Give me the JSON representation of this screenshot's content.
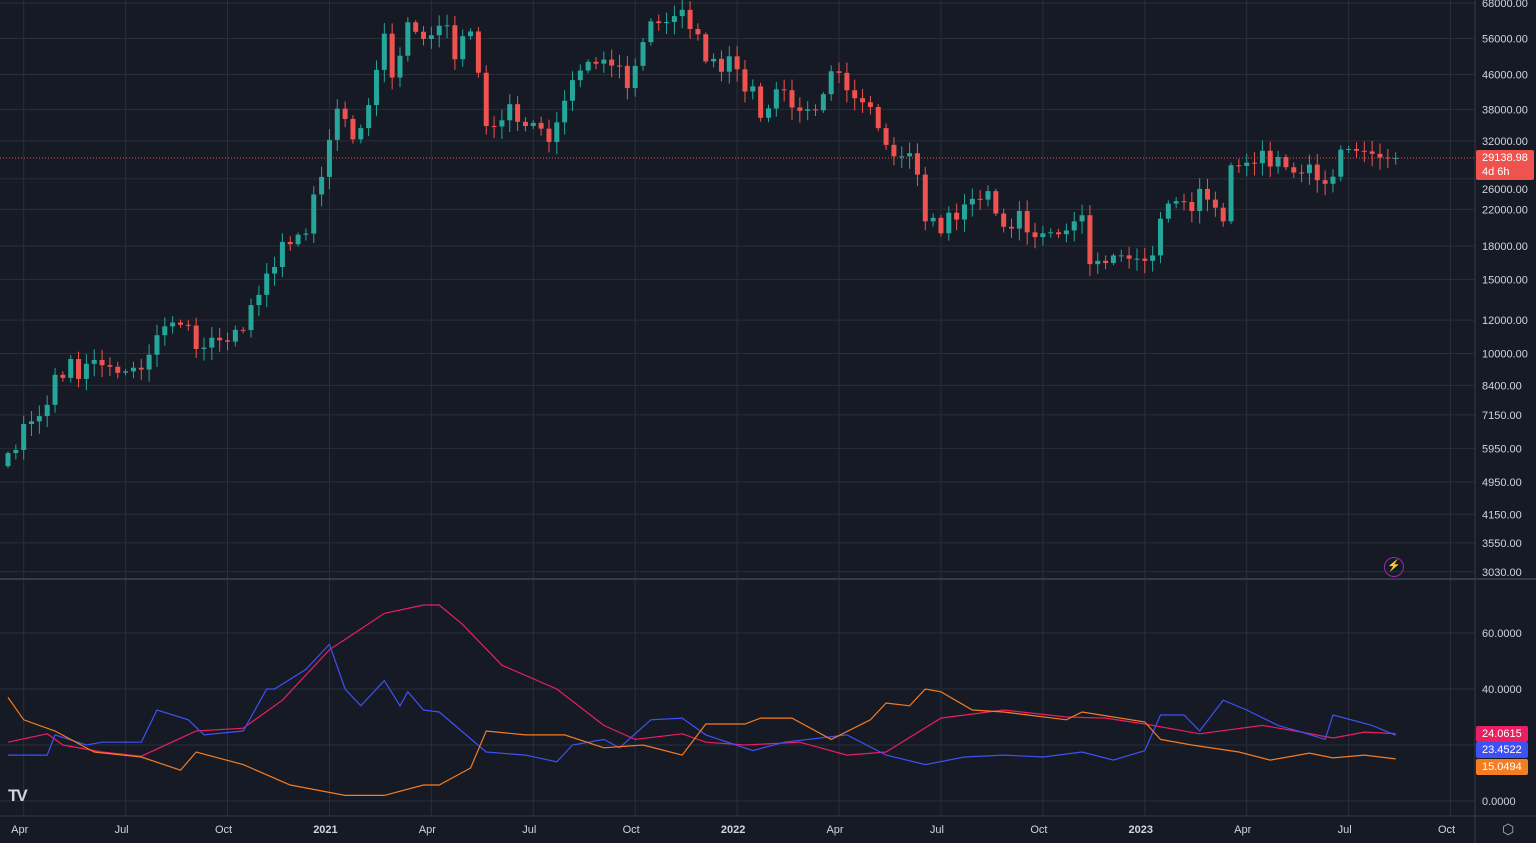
{
  "price_axis": {
    "labels": [
      "68000.00",
      "56000.00",
      "46000.00",
      "38000.00",
      "32000.00",
      "26000.00",
      "22000.00",
      "18000.00",
      "15000.00",
      "12000.00",
      "10000.00",
      "8400.00",
      "7150.00",
      "5950.00",
      "4950.00",
      "4150.00",
      "3550.00",
      "3030.00"
    ],
    "values": [
      68000,
      56000,
      46000,
      38000,
      32000,
      26000,
      22000,
      18000,
      15000,
      12000,
      10000,
      8400,
      7150,
      5950,
      4950,
      4150,
      3550,
      3030
    ]
  },
  "current_price": {
    "value": "29138.98",
    "countdown": "4d 6h",
    "color": "#ef5350"
  },
  "indicator_axis": {
    "labels": [
      "60.0000",
      "40.0000",
      "0.0000"
    ],
    "values": [
      60,
      40,
      0
    ]
  },
  "indicator_values": [
    {
      "label": "24.0615",
      "color": "#e91e63"
    },
    {
      "label": "23.4522",
      "color": "#3f51f5"
    },
    {
      "label": "15.0494",
      "color": "#f57c20"
    }
  ],
  "time_axis": {
    "labels": [
      "Apr",
      "Jul",
      "Oct",
      "2021",
      "Apr",
      "Jul",
      "Oct",
      "2022",
      "Apr",
      "Jul",
      "Oct",
      "2023",
      "Apr",
      "Jul",
      "Oct"
    ],
    "weeks": [
      2,
      15,
      28,
      41,
      54,
      67,
      80,
      93,
      106,
      119,
      132,
      145,
      158,
      171,
      184
    ],
    "bold": [
      false,
      false,
      false,
      true,
      false,
      false,
      false,
      true,
      false,
      false,
      false,
      true,
      false,
      false,
      false
    ]
  },
  "logo": "TV",
  "icons": {
    "logo": "tradingview-logo",
    "alert": "lightning-icon",
    "settings": "gear-icon"
  },
  "colors": {
    "up": "#26a69a",
    "down": "#ef5350",
    "bg": "#161a25",
    "grid": "#2a2e39"
  },
  "chart_data": {
    "type": "candlestick",
    "interval": "weekly",
    "start_week": "2020-03-16",
    "first_open": 5400,
    "closes": [
      5800,
      5900,
      6800,
      6900,
      7100,
      7550,
      8900,
      8750,
      9700,
      8700,
      9450,
      9650,
      9380,
      9300,
      9000,
      9070,
      9250,
      9160,
      9930,
      11050,
      11600,
      11850,
      11700,
      11650,
      10250,
      10330,
      10900,
      10750,
      10670,
      11380,
      11370,
      13030,
      13780,
      15480,
      16050,
      18400,
      18180,
      19150,
      19270,
      23860,
      26270,
      32170,
      38150,
      36070,
      32260,
      34300,
      38900,
      47170,
      57500,
      45240,
      50970,
      61200,
      58100,
      55870,
      57000,
      60050,
      60200,
      50000,
      56700,
      58200,
      46430,
      34700,
      34600,
      35800,
      39100,
      35500,
      34700,
      35300,
      34200,
      31800,
      35400,
      39850,
      44600,
      47000,
      49300,
      48800,
      49900,
      48300,
      48200,
      42700,
      48200,
      54900,
      61500,
      60900,
      61300,
      63300,
      65500,
      59000,
      57300,
      49400,
      50100,
      46700,
      50800,
      47300,
      41900,
      43100,
      36300,
      38200,
      42400,
      42200,
      38400,
      37700,
      38000,
      37800,
      41300,
      46800,
      46400,
      42200,
      40400,
      39500,
      38500,
      34300,
      31300,
      29400,
      29400,
      29900,
      26600,
      20600,
      21000,
      19300,
      21600,
      20800,
      22600,
      23300,
      23200,
      24300,
      21500,
      20000,
      19800,
      21800,
      19400,
      18900,
      19300,
      19400,
      19200,
      19600,
      20600,
      21300,
      16300,
      16600,
      16400,
      17100,
      17100,
      16800,
      16800,
      16600,
      17100,
      20900,
      22700,
      23000,
      22900,
      21800,
      24600,
      23200,
      22200,
      20600,
      28000,
      27900,
      28400,
      28300,
      30300,
      27800,
      29300,
      27700,
      26900,
      26800,
      28100,
      25800,
      25300,
      26300,
      30500,
      30600,
      30300,
      30200,
      29800,
      29200,
      29100,
      29139
    ],
    "y_scale": "log",
    "ylim": [
      3030,
      68000
    ],
    "indicator": {
      "type": "line",
      "ylim": [
        0,
        75
      ],
      "series": [
        {
          "name": "ADX",
          "color": "#e91e63",
          "points": [
            [
              0,
              21
            ],
            [
              5,
              24
            ],
            [
              7,
              20
            ],
            [
              12,
              17.5
            ],
            [
              17,
              16
            ],
            [
              24,
              25
            ],
            [
              30,
              26
            ],
            [
              35,
              36
            ],
            [
              41,
              54
            ],
            [
              48,
              67
            ],
            [
              53,
              70
            ],
            [
              55,
              70
            ],
            [
              58,
              63
            ],
            [
              63,
              48.5
            ],
            [
              70,
              40
            ],
            [
              76,
              27
            ],
            [
              80,
              22
            ],
            [
              86,
              24
            ],
            [
              89,
              21
            ],
            [
              94,
              20
            ],
            [
              101,
              21
            ],
            [
              107,
              16.4
            ],
            [
              112,
              17.5
            ],
            [
              119,
              29.6
            ],
            [
              127,
              32.5
            ],
            [
              135,
              30
            ],
            [
              140,
              29.6
            ],
            [
              145,
              27.5
            ],
            [
              152,
              24
            ],
            [
              160,
              27
            ],
            [
              165,
              24.6
            ],
            [
              169,
              22.5
            ],
            [
              173,
              24.6
            ],
            [
              177,
              24.06
            ]
          ]
        },
        {
          "name": "+DI",
          "color": "#3f51f5",
          "points": [
            [
              0,
              16.4
            ],
            [
              5,
              16.4
            ],
            [
              6,
              23.6
            ],
            [
              10,
              20
            ],
            [
              12,
              21
            ],
            [
              17,
              21
            ],
            [
              19,
              32.5
            ],
            [
              23,
              29
            ],
            [
              25,
              23.6
            ],
            [
              30,
              25
            ],
            [
              33,
              40
            ],
            [
              34,
              40
            ],
            [
              38,
              47
            ],
            [
              41,
              56
            ],
            [
              43,
              40
            ],
            [
              45,
              34
            ],
            [
              48,
              43
            ],
            [
              50,
              34
            ],
            [
              51,
              39
            ],
            [
              53,
              32.5
            ],
            [
              55,
              31.8
            ],
            [
              61,
              17.5
            ],
            [
              66,
              16.4
            ],
            [
              70,
              14
            ],
            [
              72,
              20
            ],
            [
              76,
              22
            ],
            [
              78,
              19
            ],
            [
              82,
              29
            ],
            [
              86,
              29.6
            ],
            [
              89,
              23.6
            ],
            [
              95,
              18
            ],
            [
              99,
              21
            ],
            [
              107,
              23.6
            ],
            [
              112,
              16.4
            ],
            [
              117,
              13
            ],
            [
              122,
              15.7
            ],
            [
              127,
              16.4
            ],
            [
              132,
              15.7
            ],
            [
              137,
              17.5
            ],
            [
              141,
              14.6
            ],
            [
              145,
              18
            ],
            [
              147,
              30.7
            ],
            [
              150,
              30.7
            ],
            [
              152,
              25
            ],
            [
              155,
              36
            ],
            [
              158,
              32.5
            ],
            [
              162,
              27
            ],
            [
              165,
              24.6
            ],
            [
              168,
              22
            ],
            [
              169,
              30.7
            ],
            [
              174,
              27
            ],
            [
              177,
              23.45
            ]
          ]
        },
        {
          "name": "-DI",
          "color": "#f57c20",
          "points": [
            [
              0,
              37
            ],
            [
              2,
              29
            ],
            [
              6,
              25
            ],
            [
              11,
              17.5
            ],
            [
              17,
              15.7
            ],
            [
              22,
              11
            ],
            [
              24,
              17.5
            ],
            [
              30,
              13
            ],
            [
              36,
              5.7
            ],
            [
              43,
              2
            ],
            [
              48,
              2
            ],
            [
              53,
              5.7
            ],
            [
              55,
              5.7
            ],
            [
              59,
              11.8
            ],
            [
              61,
              25
            ],
            [
              66,
              23.6
            ],
            [
              71,
              23.6
            ],
            [
              76,
              19
            ],
            [
              81,
              20
            ],
            [
              86,
              16.4
            ],
            [
              89,
              27.5
            ],
            [
              94,
              27.5
            ],
            [
              96,
              29.6
            ],
            [
              100,
              29.6
            ],
            [
              105,
              22
            ],
            [
              110,
              29
            ],
            [
              112,
              35
            ],
            [
              115,
              34
            ],
            [
              117,
              40
            ],
            [
              119,
              39
            ],
            [
              123,
              32.5
            ],
            [
              127,
              31.8
            ],
            [
              135,
              29
            ],
            [
              137,
              31.8
            ],
            [
              145,
              28.2
            ],
            [
              147,
              22
            ],
            [
              151,
              20
            ],
            [
              157,
              17.5
            ],
            [
              161,
              14.6
            ],
            [
              166,
              17.1
            ],
            [
              169,
              15.4
            ],
            [
              173,
              16.4
            ],
            [
              177,
              15.05
            ]
          ]
        }
      ]
    }
  }
}
